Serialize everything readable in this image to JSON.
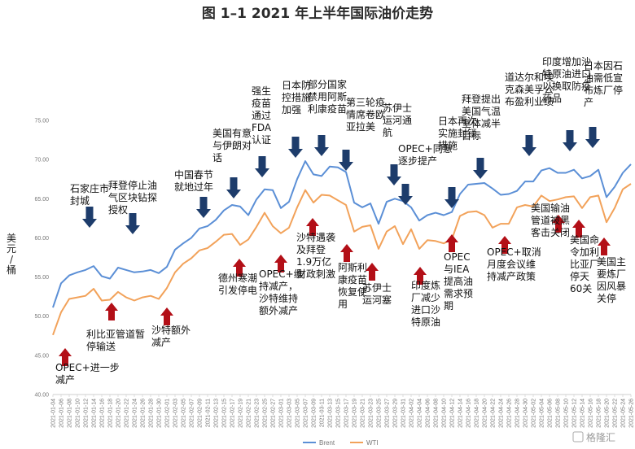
{
  "chart_data": {
    "type": "line",
    "title": "图 1–1 2021 年上半年国际油价走势",
    "ylabel": "美元/桶",
    "ylim": [
      40,
      75
    ],
    "yticks": [
      "40.00",
      "45.00",
      "50.00",
      "55.00",
      "60.00",
      "65.00",
      "70.00",
      "75.00"
    ],
    "grid": false,
    "legend_position": "bottom-center",
    "x": [
      "2021-01-04",
      "2021-01-06",
      "2021-01-08",
      "2021-01-10",
      "2021-01-12",
      "2021-01-14",
      "2021-01-16",
      "2021-01-18",
      "2021-01-20",
      "2021-01-22",
      "2021-01-24",
      "2021-01-26",
      "2021-01-28",
      "2021-01-30",
      "2021-02-01",
      "2021-02-03",
      "2021-02-05",
      "2021-02-07",
      "2021-02-09",
      "2021-02-11",
      "2021-02-13",
      "2021-02-15",
      "2021-02-17",
      "2021-02-19",
      "2021-02-21",
      "2021-02-23",
      "2021-02-25",
      "2021-02-27",
      "2021-03-01",
      "2021-03-03",
      "2021-03-05",
      "2021-03-07",
      "2021-03-09",
      "2021-03-11",
      "2021-03-13",
      "2021-03-15",
      "2021-03-17",
      "2021-03-19",
      "2021-03-21",
      "2021-03-23",
      "2021-03-25",
      "2021-03-27",
      "2021-03-29",
      "2021-03-31",
      "2021-04-02",
      "2021-04-04",
      "2021-04-06",
      "2021-04-08",
      "2021-04-10",
      "2021-04-12",
      "2021-04-14",
      "2021-04-16",
      "2021-04-18",
      "2021-04-20",
      "2021-04-22",
      "2021-04-24",
      "2021-04-26",
      "2021-04-28",
      "2021-04-30",
      "2021-05-02",
      "2021-05-04",
      "2021-05-06",
      "2021-05-08",
      "2021-05-10",
      "2021-05-12",
      "2021-05-14",
      "2021-05-16",
      "2021-05-18",
      "2021-05-20",
      "2021-05-22",
      "2021-05-24",
      "2021-05-26"
    ],
    "series": [
      {
        "name": "Brent",
        "color": "#5b8fd6",
        "values": [
          51.1,
          54.2,
          55.2,
          55.6,
          55.9,
          56.4,
          55.1,
          54.8,
          56.2,
          55.9,
          55.6,
          55.7,
          55.9,
          55.5,
          56.3,
          58.5,
          59.3,
          60.0,
          61.2,
          61.5,
          62.3,
          63.5,
          64.2,
          64.0,
          62.9,
          64.9,
          66.2,
          66.1,
          63.8,
          64.6,
          67.5,
          69.8,
          68.1,
          67.9,
          69.1,
          69.0,
          68.4,
          64.5,
          63.9,
          64.4,
          61.8,
          64.6,
          65.0,
          64.7,
          63.9,
          62.2,
          62.9,
          63.2,
          62.9,
          63.3,
          65.6,
          66.8,
          66.9,
          67.0,
          66.3,
          65.5,
          65.6,
          66.0,
          67.2,
          67.2,
          68.6,
          68.9,
          68.3,
          68.3,
          68.7,
          67.6,
          67.9,
          68.7,
          65.2,
          66.5,
          68.3,
          69.4
        ]
      },
      {
        "name": "WTI",
        "color": "#f2a25a",
        "values": [
          47.6,
          50.5,
          52.2,
          52.4,
          52.6,
          53.5,
          52.0,
          52.1,
          53.1,
          52.4,
          52.0,
          52.4,
          52.6,
          52.2,
          53.6,
          55.6,
          56.7,
          57.4,
          58.4,
          58.7,
          59.5,
          60.4,
          60.5,
          59.1,
          59.8,
          61.4,
          63.2,
          61.5,
          60.6,
          61.3,
          63.9,
          66.1,
          64.5,
          65.5,
          65.4,
          64.8,
          64.2,
          60.8,
          61.4,
          61.6,
          58.6,
          60.8,
          61.5,
          59.2,
          61.1,
          58.6,
          59.7,
          59.6,
          59.3,
          59.8,
          62.8,
          63.3,
          63.4,
          62.9,
          61.3,
          61.8,
          61.8,
          63.9,
          64.2,
          64.0,
          65.4,
          64.7,
          64.9,
          65.2,
          65.3,
          63.8,
          65.2,
          65.4,
          62.0,
          63.8,
          66.2,
          66.9
        ]
      }
    ],
    "annotations": [
      {
        "text": "OPEC+进一步减产",
        "direction": "up"
      },
      {
        "text": "石家庄市封城",
        "direction": "down"
      },
      {
        "text": "利比亚管道暂停输送",
        "direction": "up"
      },
      {
        "text": "拜登停止油气区块钻探授权",
        "direction": "down"
      },
      {
        "text": "沙特额外减产",
        "direction": "up"
      },
      {
        "text": "中国春节就地过年",
        "direction": "down"
      },
      {
        "text": "美国有意与伊朗对话",
        "direction": "down"
      },
      {
        "text": "德州寒潮引发停电",
        "direction": "up"
      },
      {
        "text": "强生疫苗通过FDA认证",
        "direction": "down"
      },
      {
        "text": "OPEC+维持减产，沙特维持额外减产",
        "direction": "up"
      },
      {
        "text": "日本防控措施加强",
        "direction": "down"
      },
      {
        "text": "沙特遇袭及拜登1.9万亿财政刺激",
        "direction": "up"
      },
      {
        "text": "部分国家禁用阿斯利康疫苗",
        "direction": "down"
      },
      {
        "text": "第三轮疫情席卷欧亚拉美",
        "direction": "down"
      },
      {
        "text": "阿斯利康疫苗恢复使用",
        "direction": "up"
      },
      {
        "text": "苏伊士运河塞",
        "direction": "up"
      },
      {
        "text": "苏伊士运河通航",
        "direction": "down"
      },
      {
        "text": "OPEC+同意逐步提产",
        "direction": "down"
      },
      {
        "text": "印度炼厂减少进口沙特原油",
        "direction": "up"
      },
      {
        "text": "日本再次实施封锁措施",
        "direction": "down"
      },
      {
        "text": "OPEC与IEA提高油需求预期",
        "direction": "up"
      },
      {
        "text": "拜登提出美国气温室体减半目标",
        "direction": "down"
      },
      {
        "text": "OPEC+取消月度会议维持减产政策",
        "direction": "up"
      },
      {
        "text": "道达尔和埃克森美孚公布盈利业绩",
        "direction": "down"
      },
      {
        "text": "美国输油管道被黑客击关闭",
        "direction": "up"
      },
      {
        "text": "印度增加沙特原油进口以换取防疫药品",
        "direction": "down"
      },
      {
        "text": "美国命令加利比亚厂停天60关",
        "direction": "up"
      },
      {
        "text": "日本因石油需低宣布炼厂停产",
        "direction": "down"
      },
      {
        "text": "美国主要炼厂因风暴关停",
        "direction": "up"
      }
    ]
  },
  "watermark": "格隆汇"
}
